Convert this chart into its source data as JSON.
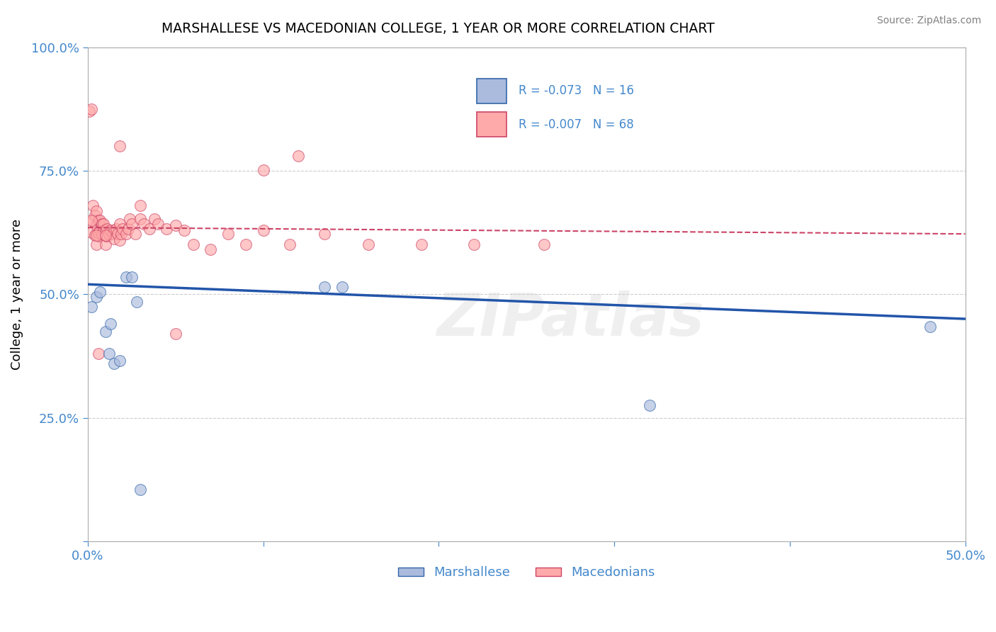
{
  "title": "MARSHALLESE VS MACEDONIAN COLLEGE, 1 YEAR OR MORE CORRELATION CHART",
  "source": "Source: ZipAtlas.com",
  "ylabel": "College, 1 year or more",
  "xlim": [
    0.0,
    0.5
  ],
  "ylim": [
    0.0,
    1.0
  ],
  "blue_R": -0.073,
  "blue_N": 16,
  "pink_R": -0.007,
  "pink_N": 68,
  "blue_scatter_color": "#aabbdd",
  "blue_edge_color": "#3366aa",
  "pink_scatter_color": "#ffaaaa",
  "pink_edge_color": "#cc4466",
  "blue_line_color": "#2255aa",
  "pink_line_color": "#cc4466",
  "axis_tick_color": "#4488cc",
  "grid_color": "#cccccc",
  "blue_x": [
    0.002,
    0.005,
    0.007,
    0.01,
    0.012,
    0.013,
    0.015,
    0.018,
    0.022,
    0.025,
    0.028,
    0.03,
    0.135,
    0.145,
    0.32,
    0.48
  ],
  "blue_y": [
    0.475,
    0.495,
    0.505,
    0.425,
    0.38,
    0.44,
    0.36,
    0.365,
    0.535,
    0.535,
    0.485,
    0.105,
    0.515,
    0.515,
    0.275,
    0.435
  ],
  "pink_x": [
    0.001,
    0.002,
    0.002,
    0.003,
    0.003,
    0.004,
    0.004,
    0.005,
    0.005,
    0.005,
    0.006,
    0.006,
    0.006,
    0.007,
    0.007,
    0.008,
    0.008,
    0.009,
    0.009,
    0.01,
    0.01,
    0.01,
    0.011,
    0.011,
    0.012,
    0.013,
    0.014,
    0.015,
    0.015,
    0.016,
    0.017,
    0.018,
    0.018,
    0.019,
    0.02,
    0.022,
    0.023,
    0.024,
    0.025,
    0.027,
    0.03,
    0.032,
    0.035,
    0.038,
    0.04,
    0.045,
    0.05,
    0.055,
    0.06,
    0.07,
    0.08,
    0.09,
    0.1,
    0.115,
    0.135,
    0.16,
    0.19,
    0.22,
    0.26,
    0.1,
    0.12,
    0.018,
    0.03,
    0.05,
    0.002,
    0.005,
    0.006,
    0.01
  ],
  "pink_y": [
    0.87,
    0.875,
    0.625,
    0.648,
    0.68,
    0.62,
    0.66,
    0.64,
    0.668,
    0.6,
    0.618,
    0.65,
    0.625,
    0.63,
    0.65,
    0.622,
    0.642,
    0.63,
    0.642,
    0.63,
    0.618,
    0.6,
    0.632,
    0.618,
    0.622,
    0.63,
    0.622,
    0.63,
    0.612,
    0.632,
    0.622,
    0.642,
    0.61,
    0.622,
    0.632,
    0.622,
    0.632,
    0.652,
    0.642,
    0.622,
    0.652,
    0.642,
    0.632,
    0.652,
    0.642,
    0.632,
    0.64,
    0.63,
    0.6,
    0.59,
    0.622,
    0.6,
    0.63,
    0.6,
    0.622,
    0.6,
    0.6,
    0.6,
    0.6,
    0.752,
    0.78,
    0.8,
    0.68,
    0.42,
    0.65,
    0.62,
    0.38,
    0.62
  ],
  "blue_trendline_y": [
    0.52,
    0.45
  ],
  "pink_trendline_y": [
    0.635,
    0.622
  ],
  "watermark": "ZIPatlas"
}
